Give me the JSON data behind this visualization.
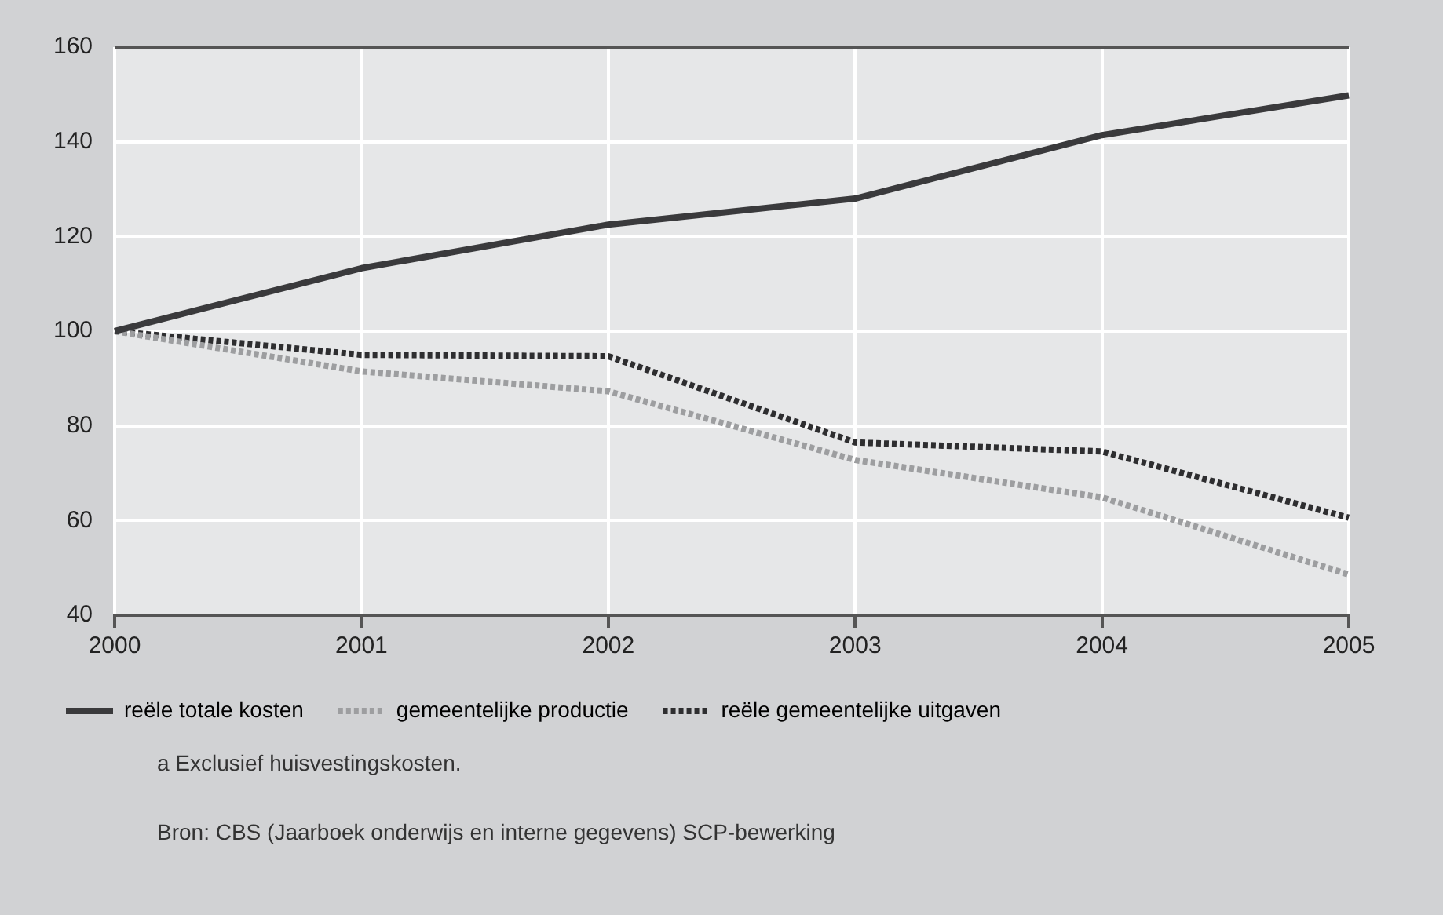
{
  "chart_data": {
    "type": "line",
    "categories": [
      "2000",
      "2001",
      "2002",
      "2003",
      "2004",
      "2005"
    ],
    "series": [
      {
        "name": "reële totale kosten",
        "color": "#3a3a3c",
        "line_style": "solid",
        "values": [
          100,
          113.3,
          122.5,
          128,
          141.4,
          149.8
        ]
      },
      {
        "name": "gemeentelijke productie",
        "color": "#9d9ea0",
        "line_style": "dotted",
        "values": [
          100,
          91.5,
          87.3,
          72.8,
          64.9,
          48.6
        ]
      },
      {
        "name": "reële gemeentelijke uitgaven",
        "color": "#2e2e30",
        "line_style": "dotted",
        "values": [
          100,
          95,
          94.7,
          76.5,
          74.6,
          60.6
        ]
      }
    ],
    "ylim": [
      40,
      160
    ],
    "yticks": [
      40,
      60,
      80,
      100,
      120,
      140,
      160
    ],
    "grid": true,
    "legend": "bottom",
    "marker": "none",
    "annotations": [
      "a   Exclusief huisvestingskosten.",
      "Bron: CBS (Jaarboek onderwijs en interne gegevens) SCP-bewerking"
    ]
  }
}
